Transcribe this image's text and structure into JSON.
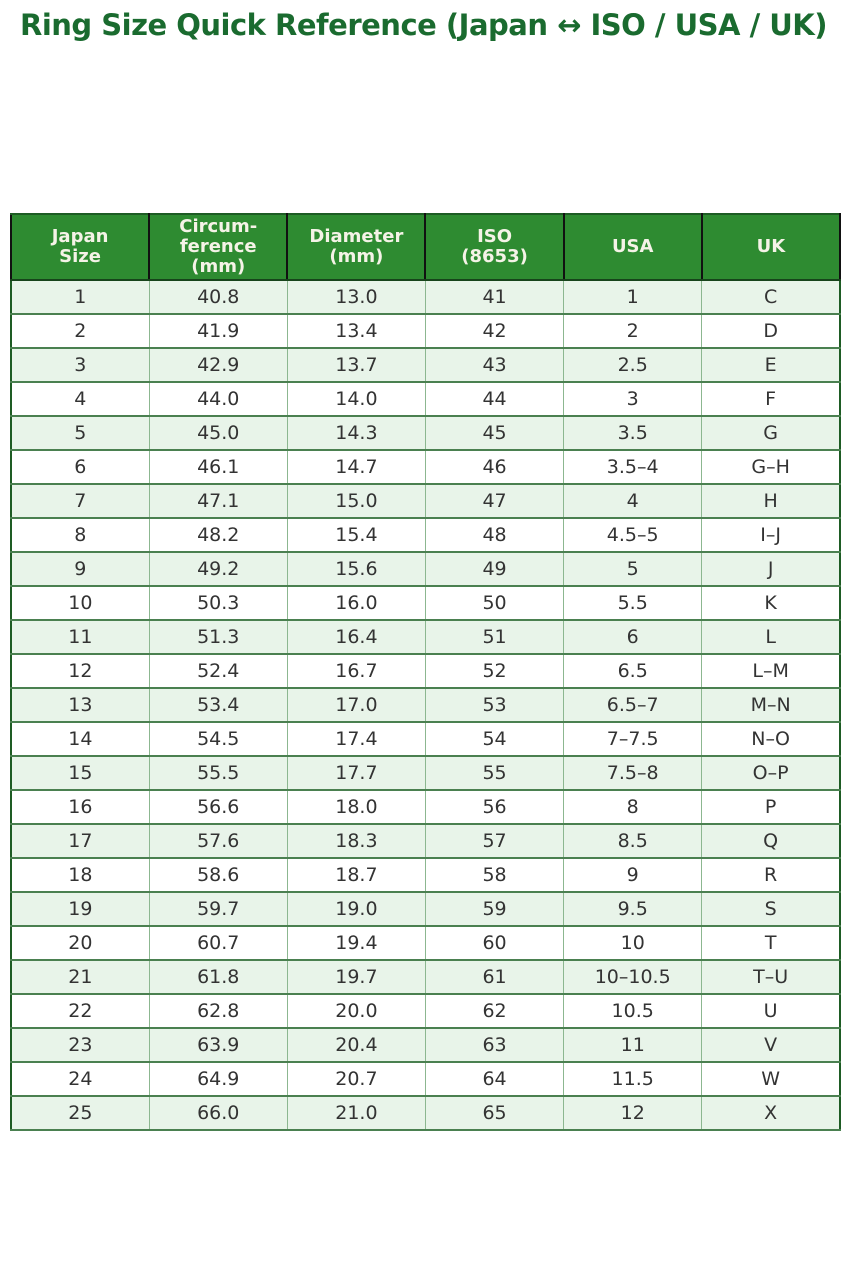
{
  "page": {
    "title": "Ring Size Quick Reference (Japan ↔ ISO / USA / UK)"
  },
  "colors": {
    "title_green": "#1a6b2f",
    "header_bg": "#2e8b31",
    "header_text": "#f5f3e7",
    "row_alt_bg": "#e8f4e9",
    "row_bg": "#ffffff",
    "grid_green": "#4a8050",
    "outer_border": "#1e5c24",
    "header_divider": "#111111",
    "body_text": "#333333"
  },
  "chart_data": {
    "type": "table",
    "title": "Ring Size Quick Reference (Japan ↔ ISO / USA / UK)",
    "columns": [
      {
        "key": "japan",
        "label": "Japan\nSize"
      },
      {
        "key": "circumference",
        "label": "Circum-\nference\n(mm)"
      },
      {
        "key": "diameter",
        "label": "Diameter\n(mm)"
      },
      {
        "key": "iso",
        "label": "ISO\n(8653)"
      },
      {
        "key": "usa",
        "label": "USA"
      },
      {
        "key": "uk",
        "label": "UK"
      }
    ],
    "rows": [
      [
        "1",
        "40.8",
        "13.0",
        "41",
        "1",
        "C"
      ],
      [
        "2",
        "41.9",
        "13.4",
        "42",
        "2",
        "D"
      ],
      [
        "3",
        "42.9",
        "13.7",
        "43",
        "2.5",
        "E"
      ],
      [
        "4",
        "44.0",
        "14.0",
        "44",
        "3",
        "F"
      ],
      [
        "5",
        "45.0",
        "14.3",
        "45",
        "3.5",
        "G"
      ],
      [
        "6",
        "46.1",
        "14.7",
        "46",
        "3.5–4",
        "G–H"
      ],
      [
        "7",
        "47.1",
        "15.0",
        "47",
        "4",
        "H"
      ],
      [
        "8",
        "48.2",
        "15.4",
        "48",
        "4.5–5",
        "I–J"
      ],
      [
        "9",
        "49.2",
        "15.6",
        "49",
        "5",
        "J"
      ],
      [
        "10",
        "50.3",
        "16.0",
        "50",
        "5.5",
        "K"
      ],
      [
        "11",
        "51.3",
        "16.4",
        "51",
        "6",
        "L"
      ],
      [
        "12",
        "52.4",
        "16.7",
        "52",
        "6.5",
        "L–M"
      ],
      [
        "13",
        "53.4",
        "17.0",
        "53",
        "6.5–7",
        "M–N"
      ],
      [
        "14",
        "54.5",
        "17.4",
        "54",
        "7–7.5",
        "N–O"
      ],
      [
        "15",
        "55.5",
        "17.7",
        "55",
        "7.5–8",
        "O–P"
      ],
      [
        "16",
        "56.6",
        "18.0",
        "56",
        "8",
        "P"
      ],
      [
        "17",
        "57.6",
        "18.3",
        "57",
        "8.5",
        "Q"
      ],
      [
        "18",
        "58.6",
        "18.7",
        "58",
        "9",
        "R"
      ],
      [
        "19",
        "59.7",
        "19.0",
        "59",
        "9.5",
        "S"
      ],
      [
        "20",
        "60.7",
        "19.4",
        "60",
        "10",
        "T"
      ],
      [
        "21",
        "61.8",
        "19.7",
        "61",
        "10–10.5",
        "T–U"
      ],
      [
        "22",
        "62.8",
        "20.0",
        "62",
        "10.5",
        "U"
      ],
      [
        "23",
        "63.9",
        "20.4",
        "63",
        "11",
        "V"
      ],
      [
        "24",
        "64.9",
        "20.7",
        "64",
        "11.5",
        "W"
      ],
      [
        "25",
        "66.0",
        "21.0",
        "65",
        "12",
        "X"
      ]
    ]
  }
}
